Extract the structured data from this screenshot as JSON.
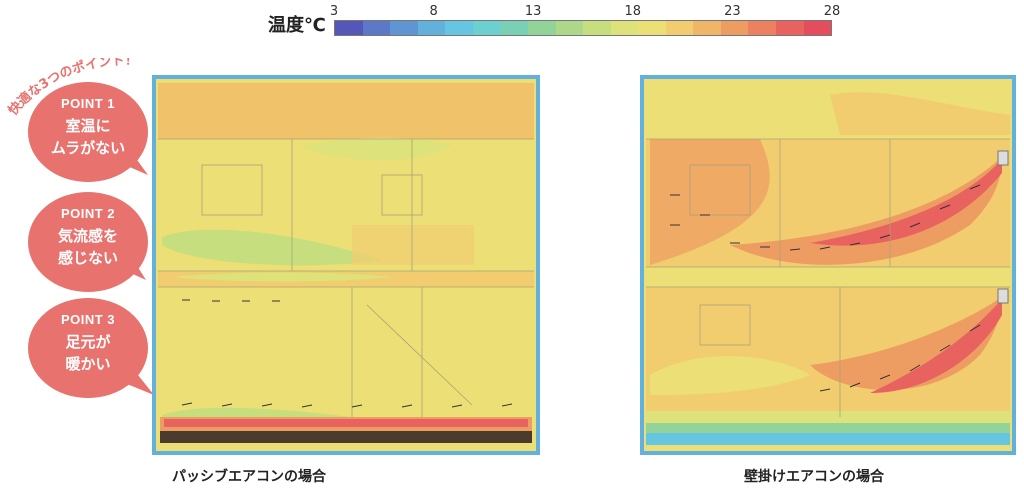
{
  "legend": {
    "title": "温度℃",
    "ticks": [
      "3",
      "8",
      "13",
      "18",
      "23",
      "28"
    ],
    "colors": [
      "#5557b8",
      "#5d78c6",
      "#5e95d2",
      "#61b1dc",
      "#66c6e1",
      "#6ccfd0",
      "#79d0b4",
      "#92d39a",
      "#add88a",
      "#c7de7f",
      "#dde27a",
      "#ecdf76",
      "#f1cd70",
      "#f0b667",
      "#ee9d62",
      "#eb8160",
      "#e8625f",
      "#e44d5d"
    ]
  },
  "slogan": "快適な3つのポイント！",
  "points": [
    {
      "label": "POINT 1",
      "lines": [
        "室温に",
        "ムラがない"
      ]
    },
    {
      "label": "POINT 2",
      "lines": [
        "気流感を",
        "感じない"
      ]
    },
    {
      "label": "POINT 3",
      "lines": [
        "足元が",
        "暖かい"
      ]
    }
  ],
  "captions": {
    "left": "パッシブエアコンの場合",
    "right": "壁掛けエアコンの場合"
  },
  "colors": {
    "accent": "#e8726e",
    "warm": "#f0b667",
    "hot": "#e8625f",
    "mild": "#dde27a",
    "cool": "#add88a",
    "cold": "#61b1dc"
  }
}
